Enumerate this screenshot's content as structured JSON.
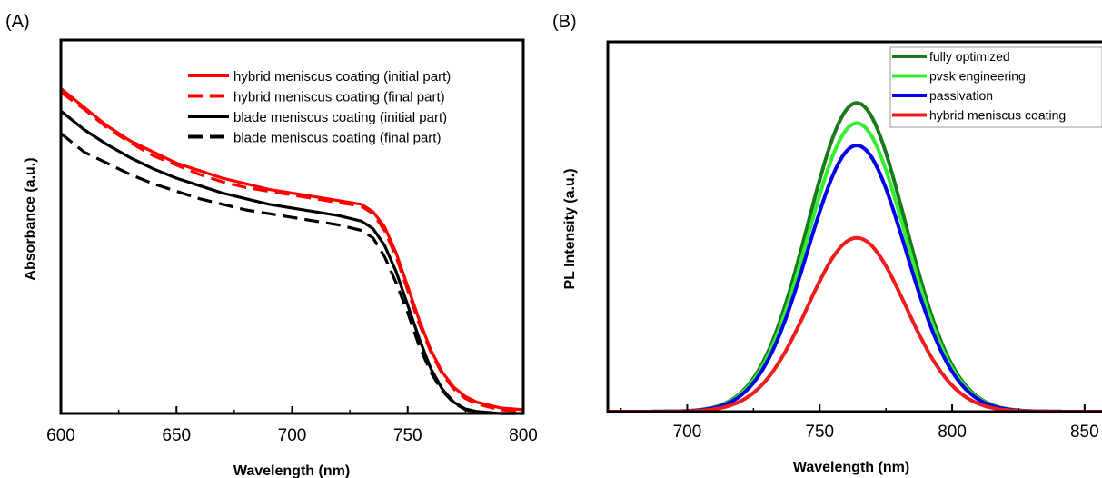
{
  "chart_data": [
    {
      "panel": "(A)",
      "type": "line",
      "xlabel": "Wavelength (nm)",
      "ylabel": "Absorbance (a.u.)",
      "xlim": [
        600,
        800
      ],
      "ylim": [
        0,
        1
      ],
      "xticks": [
        600,
        650,
        700,
        750,
        800
      ],
      "yticks": [],
      "legend_position": "top-right",
      "series": [
        {
          "name": "hybrid meniscus coating (initial part)",
          "color": "#ff0000",
          "dash": "solid",
          "x": [
            600,
            610,
            620,
            630,
            640,
            650,
            660,
            670,
            680,
            690,
            700,
            710,
            720,
            730,
            735,
            740,
            745,
            750,
            755,
            760,
            765,
            770,
            775,
            780,
            790,
            800
          ],
          "y": [
            0.87,
            0.82,
            0.77,
            0.73,
            0.7,
            0.67,
            0.65,
            0.63,
            0.615,
            0.6,
            0.59,
            0.58,
            0.57,
            0.56,
            0.54,
            0.5,
            0.43,
            0.34,
            0.25,
            0.17,
            0.11,
            0.07,
            0.045,
            0.03,
            0.015,
            0.01
          ]
        },
        {
          "name": "hybrid meniscus coating (final part)",
          "color": "#ff0000",
          "dash": "dashed",
          "x": [
            600,
            610,
            620,
            630,
            640,
            650,
            660,
            670,
            680,
            690,
            700,
            710,
            720,
            730,
            735,
            740,
            745,
            750,
            755,
            760,
            765,
            770,
            775,
            780,
            790,
            800
          ],
          "y": [
            0.86,
            0.815,
            0.765,
            0.725,
            0.69,
            0.665,
            0.64,
            0.62,
            0.605,
            0.595,
            0.585,
            0.575,
            0.565,
            0.555,
            0.535,
            0.49,
            0.42,
            0.33,
            0.24,
            0.165,
            0.105,
            0.065,
            0.04,
            0.025,
            0.01,
            0.005
          ]
        },
        {
          "name": "blade meniscus coating  (initial part)",
          "color": "#000000",
          "dash": "solid",
          "x": [
            600,
            610,
            620,
            630,
            640,
            650,
            660,
            670,
            680,
            690,
            700,
            710,
            720,
            730,
            735,
            740,
            745,
            750,
            755,
            760,
            765,
            770,
            775,
            780,
            790,
            800
          ],
          "y": [
            0.81,
            0.76,
            0.72,
            0.685,
            0.655,
            0.63,
            0.61,
            0.59,
            0.575,
            0.56,
            0.55,
            0.54,
            0.53,
            0.515,
            0.495,
            0.45,
            0.38,
            0.29,
            0.2,
            0.12,
            0.065,
            0.03,
            0.012,
            0.005,
            0.0,
            0.0
          ]
        },
        {
          "name": "blade meniscus coating  (final part)",
          "color": "#000000",
          "dash": "dashed",
          "x": [
            600,
            610,
            620,
            630,
            640,
            650,
            660,
            670,
            680,
            690,
            700,
            710,
            720,
            730,
            735,
            740,
            745,
            750,
            755,
            760,
            765,
            770,
            775,
            780,
            790,
            800
          ],
          "y": [
            0.75,
            0.7,
            0.67,
            0.64,
            0.615,
            0.595,
            0.575,
            0.56,
            0.545,
            0.535,
            0.525,
            0.515,
            0.505,
            0.49,
            0.47,
            0.42,
            0.35,
            0.27,
            0.18,
            0.11,
            0.06,
            0.028,
            0.01,
            0.004,
            0.0,
            0.0
          ]
        }
      ]
    },
    {
      "panel": "(B)",
      "type": "line",
      "xlabel": "Wavelength (nm)",
      "ylabel": "PL Intensity (a.u.)",
      "xlim": [
        670,
        860
      ],
      "ylim": [
        0,
        1
      ],
      "xticks": [
        700,
        750,
        800,
        850
      ],
      "yticks": [],
      "legend_position": "top-right",
      "peak_center": 764,
      "peak_sigma": 18.5,
      "series": [
        {
          "name": "fully optimized",
          "color": "#1a7a1a",
          "peak": 0.835
        },
        {
          "name": "pvsk engineering",
          "color": "#33ee33",
          "peak": 0.78
        },
        {
          "name": "passivation",
          "color": "#0000ee",
          "peak": 0.72
        },
        {
          "name": "hybrid meniscus coating",
          "color": "#ee1c1c",
          "peak": 0.47
        }
      ]
    }
  ]
}
